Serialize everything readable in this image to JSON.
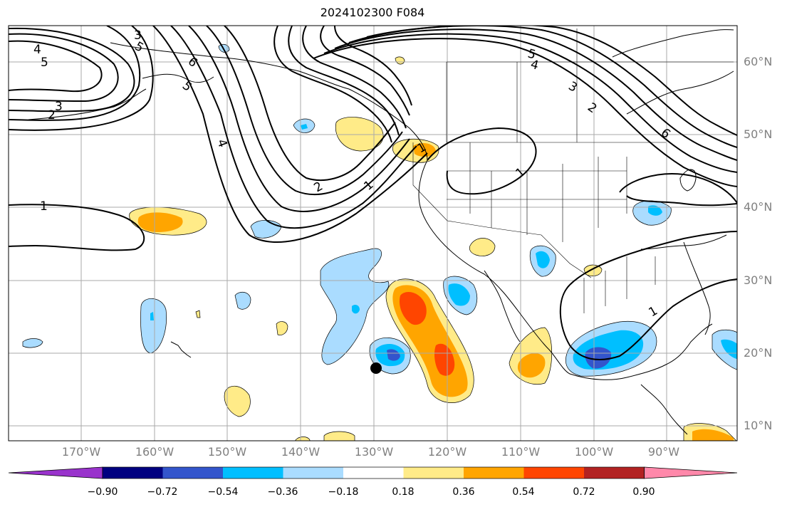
{
  "title": "2024102300 F084",
  "map_type": "contour-fill anomaly map over the eastern North Pacific and North America",
  "lat_labels": [
    "60°N",
    "50°N",
    "40°N",
    "30°N",
    "20°N",
    "10°N"
  ],
  "lon_labels": [
    "170°W",
    "160°W",
    "150°W",
    "140°W",
    "130°W",
    "120°W",
    "110°W",
    "100°W",
    "90°W"
  ],
  "colorbar": {
    "tick_labels": [
      "−0.90",
      "−0.72",
      "−0.54",
      "−0.36",
      "−0.18",
      "0.18",
      "0.36",
      "0.54",
      "0.72",
      "0.90"
    ],
    "colors": [
      "#9933cc",
      "#000080",
      "#3355cc",
      "#00bfff",
      "#aadcff",
      "#ffffff",
      "#ffeb88",
      "#ffa500",
      "#ff4500",
      "#b22222",
      "#ff88aa"
    ]
  },
  "contour_labels": [
    "4",
    "5",
    "3",
    "2",
    "1",
    "6",
    "5",
    "4",
    "3",
    "2",
    "1",
    "1",
    "5",
    "4",
    "3",
    "2",
    "6",
    "5",
    "1",
    "1"
  ],
  "colors": {
    "land_outline": "#000000",
    "grid": "#aaaaaa",
    "contour": "#000000",
    "marker": "#000000"
  }
}
